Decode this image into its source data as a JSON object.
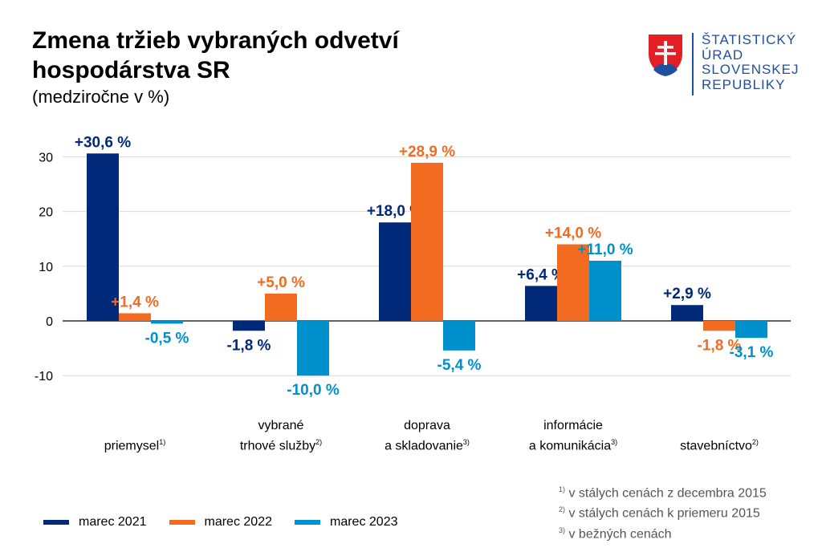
{
  "header": {
    "title_line1": "Zmena tržieb vybraných odvetví",
    "title_line2": "hospodárstva SR",
    "subtitle": "(medziročne v %)"
  },
  "logo": {
    "org_line1": "ŠTATISTICKÝ",
    "org_line2": "ÚRAD",
    "org_line3": "SLOVENSKEJ",
    "org_line4": "REPUBLIKY"
  },
  "chart_data": {
    "type": "bar",
    "categories": [
      "priemysel",
      "vybrané trhové služby",
      "doprava a skladovanie",
      "informácie a komunikácia",
      "stavebníctvo"
    ],
    "category_lines": [
      [
        "priemysel"
      ],
      [
        "vybrané",
        "trhové služby"
      ],
      [
        "doprava",
        "a skladovanie"
      ],
      [
        "informácie",
        "a komunikácia"
      ],
      [
        "stavebníctvo"
      ]
    ],
    "category_notes": [
      "1)",
      "2)",
      "3)",
      "3)",
      "2)"
    ],
    "series": [
      {
        "name": "marec 2021",
        "color": "#00297a",
        "values": [
          30.6,
          -1.8,
          18.0,
          6.4,
          2.9
        ],
        "labels": [
          "+30,6 %",
          "-1,8 %",
          "+18,0 %",
          "+6,4 %",
          "+2,9 %"
        ]
      },
      {
        "name": "marec 2022",
        "color": "#f26b21",
        "values": [
          1.4,
          5.0,
          28.9,
          14.0,
          -1.8
        ],
        "labels": [
          "+1,4 %",
          "+5,0 %",
          "+28,9 %",
          "+14,0 %",
          "-1,8 %"
        ]
      },
      {
        "name": "marec 2023",
        "color": "#0090cc",
        "values": [
          -0.5,
          -10.0,
          -5.4,
          11.0,
          -3.1
        ],
        "labels": [
          "-0,5 %",
          "-10,0 %",
          "-5,4 %",
          "+11,0 %",
          "-3,1 %"
        ]
      }
    ],
    "yticks": [
      30,
      20,
      10,
      0,
      -10
    ],
    "ylim": [
      -10,
      30
    ],
    "grid": true,
    "legend": "bottom-left"
  },
  "footnotes": [
    {
      "mark": "1)",
      "text": "v stálych cenách z decembra 2015"
    },
    {
      "mark": "2)",
      "text": "v stálych cenách k priemeru 2015"
    },
    {
      "mark": "3)",
      "text": "v bežných cenách"
    }
  ]
}
